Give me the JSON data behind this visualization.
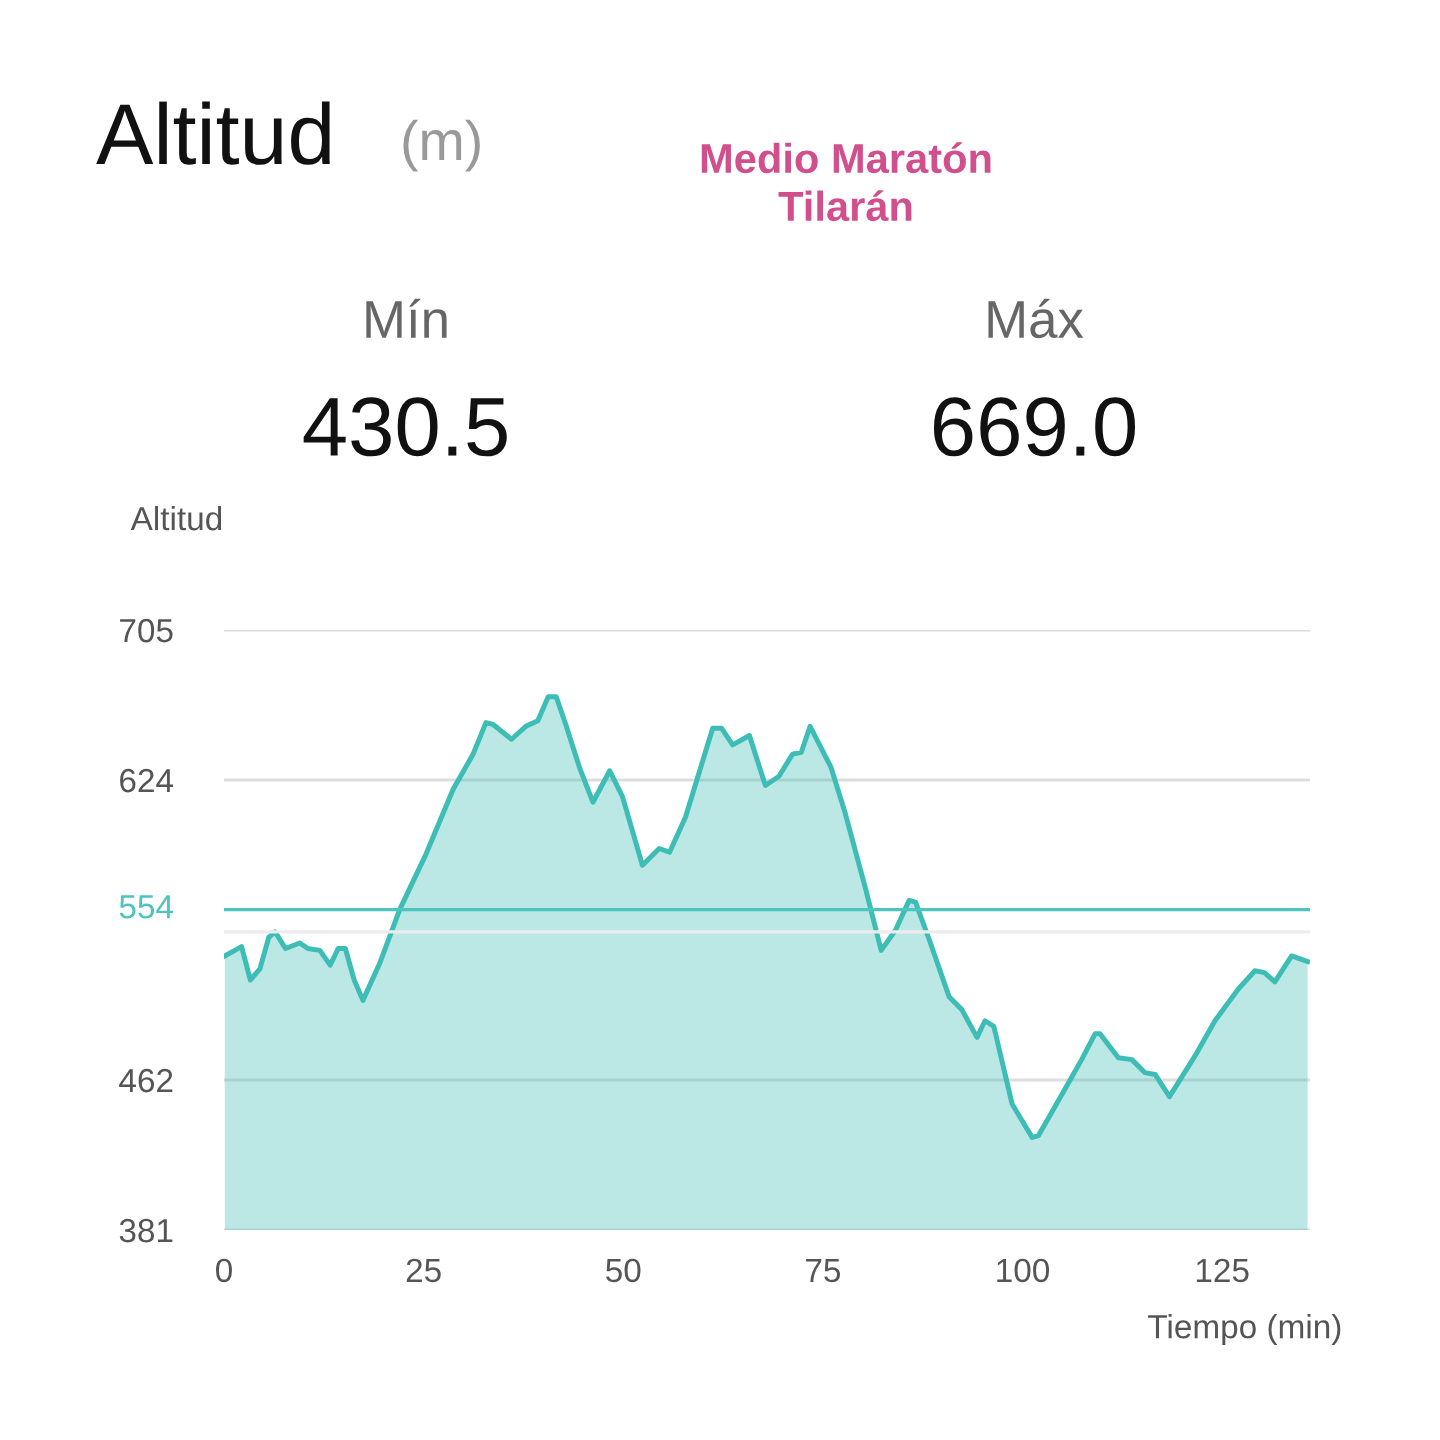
{
  "chart_data": {
    "type": "area",
    "title": "Altitud",
    "subtitle": "(m)",
    "ylabel": "Altitud",
    "xlabel": "Tiempo (min)",
    "annotations": [
      "Medio Maratón\nTilarán",
      "Mín",
      "430.5",
      "Máx",
      "669.0"
    ],
    "series": [
      {
        "color": "#3dbdb5",
        "x": [
          0.1,
          2.2,
          3.3,
          4.5,
          5.6,
          6.4,
          7.7,
          9.5,
          10.5,
          12,
          13.3,
          14.3,
          15.2,
          16.3,
          17.4,
          19.5,
          22,
          25.3,
          28.7,
          31.2,
          32.8,
          33.7,
          36,
          37.8,
          39.3,
          40.6,
          41.6,
          42.8,
          44.5,
          46.2,
          48.3,
          49.9,
          52.4,
          54.5,
          55.8,
          57.8,
          61.2,
          62.3,
          63.7,
          65.8,
          67.8,
          69.5,
          71.2,
          72.3,
          73.4,
          76,
          77.8,
          80.3,
          82.3,
          84.1,
          85.8,
          86.6,
          88.3,
          90.8,
          92.4,
          94.3,
          95.3,
          96.4,
          98.7,
          101.2,
          102,
          105.3,
          107.4,
          109.1,
          109.7,
          112,
          113.7,
          115.3,
          116.6,
          118.4,
          121.6,
          124.1,
          127,
          129.1,
          130.3,
          131.6,
          133.7,
          135.7
        ],
        "values": [
          529,
          534,
          516,
          522,
          539,
          542,
          533,
          536,
          533,
          532,
          524,
          533,
          533,
          516,
          505,
          525,
          554,
          584,
          619,
          638,
          655,
          654,
          646,
          653,
          656,
          669,
          669,
          654,
          631,
          612,
          629,
          615,
          578,
          587,
          585,
          604,
          652,
          652,
          643,
          648,
          621,
          626,
          638,
          639,
          653,
          631,
          606,
          566,
          532,
          543,
          559,
          558,
          538,
          507,
          500,
          485,
          494,
          491,
          449,
          431,
          432,
          457,
          473,
          487,
          487,
          474,
          473,
          466,
          465,
          453,
          475,
          494,
          511,
          521,
          520,
          515,
          529,
          526
        ]
      }
    ],
    "xlim": [
      0,
      136
    ],
    "ylim": [
      381,
      705
    ],
    "xticks": [
      0,
      25,
      50,
      75,
      100,
      125
    ],
    "yticks": [
      381,
      462,
      624,
      705
    ],
    "ref_lines": [
      {
        "axis": "y",
        "value": 554,
        "label": "554",
        "color": "#4dc4c0"
      },
      {
        "axis": "y",
        "value": 542,
        "color": "#ececec"
      }
    ],
    "grid": "y"
  }
}
